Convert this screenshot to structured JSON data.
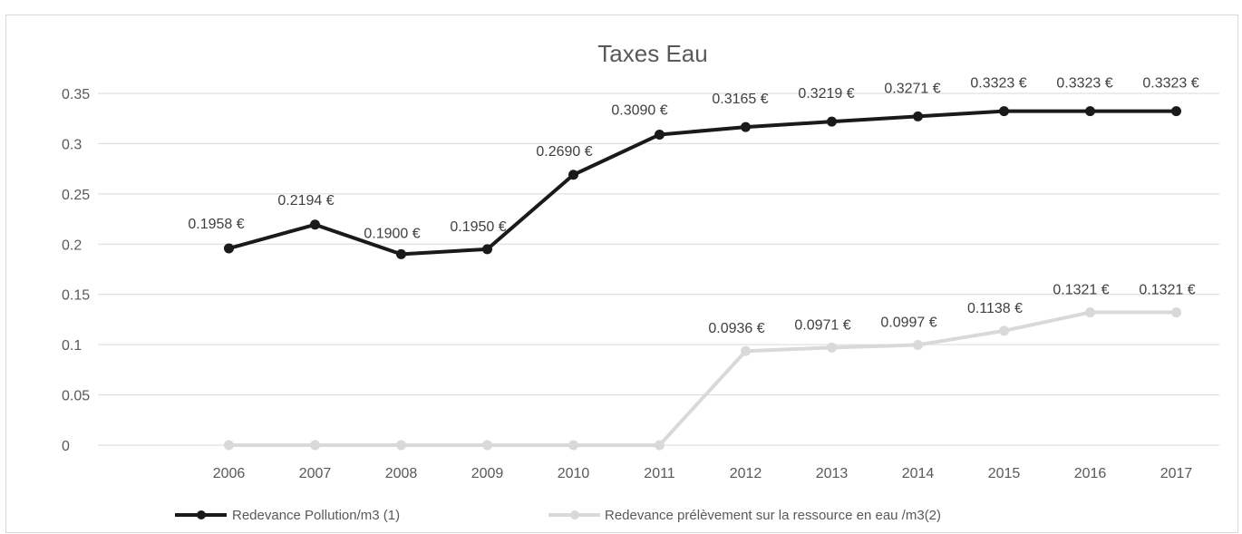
{
  "chart_data": {
    "type": "line",
    "title": "Taxes Eau",
    "categories": [
      "2006",
      "2007",
      "2008",
      "2009",
      "2010",
      "2011",
      "2012",
      "2013",
      "2014",
      "2015",
      "2016",
      "2017"
    ],
    "ylim": [
      0,
      0.35
    ],
    "yticks": [
      "0",
      "0.05",
      "0.1",
      "0.15",
      "0.2",
      "0.25",
      "0.3",
      "0.35"
    ],
    "grid": true,
    "legend_position": "bottom",
    "series": [
      {
        "name": "Redevance Pollution/m3 (1)",
        "color": "#1a1a1a",
        "values": [
          0.1958,
          0.2194,
          0.19,
          0.195,
          0.269,
          0.309,
          0.3165,
          0.3219,
          0.3271,
          0.3323,
          0.3323,
          0.3323
        ],
        "labels": [
          "0.1958 €",
          "0.2194 €",
          "0.1900 €",
          "0.1950 €",
          "0.2690 €",
          "0.3090 €",
          "0.3165 €",
          "0.3219 €",
          "0.3271 €",
          "0.3323 €",
          "0.3323 €",
          "0.3323 €"
        ]
      },
      {
        "name": "Redevance prélèvement sur la ressource en eau /m3(2)",
        "color": "#d9d9d9",
        "values": [
          0,
          0,
          0,
          0,
          0,
          0,
          0.0936,
          0.0971,
          0.0997,
          0.1138,
          0.1321,
          0.1321
        ],
        "labels": [
          "",
          "",
          "",
          "",
          "",
          "",
          "0.0936 €",
          "0.0971 €",
          "0.0997 €",
          "0.1138 €",
          "0.1321 €",
          "0.1321 €"
        ]
      }
    ]
  }
}
